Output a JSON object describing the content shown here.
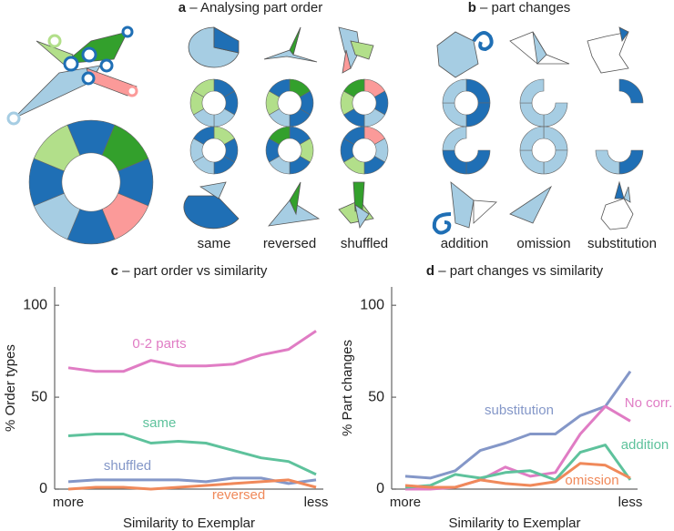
{
  "panels": {
    "a": {
      "label": "a",
      "title": "– Analysing part order",
      "columns": [
        "same",
        "reversed",
        "shuffled"
      ]
    },
    "b": {
      "label": "b",
      "title": "– part changes",
      "columns": [
        "addition",
        "omission",
        "substitution"
      ]
    }
  },
  "chart_data": [
    {
      "type": "line",
      "label": "c",
      "title": "– part order vs similarity",
      "x_label": "Similarity to Exemplar",
      "y_label": "% Order types",
      "categories": [
        "more",
        null,
        null,
        null,
        null,
        null,
        null,
        null,
        null,
        "less"
      ],
      "ylim": [
        0,
        110
      ],
      "yticks": [
        0,
        50,
        100
      ],
      "series": [
        {
          "name": "0-2 parts",
          "color": "#e07cc4",
          "values": [
            66,
            64,
            64,
            70,
            67,
            67,
            68,
            73,
            76,
            86
          ]
        },
        {
          "name": "same",
          "color": "#5ec29c",
          "values": [
            29,
            30,
            30,
            25,
            26,
            25,
            21,
            17,
            15,
            8
          ]
        },
        {
          "name": "shuffled",
          "color": "#8497c8",
          "values": [
            4,
            5,
            5,
            5,
            5,
            4,
            6,
            6,
            3,
            5
          ]
        },
        {
          "name": "reversed",
          "color": "#f0895a",
          "values": [
            0,
            1,
            1,
            0,
            1,
            2,
            3,
            4,
            5,
            1
          ]
        }
      ]
    },
    {
      "type": "line",
      "label": "d",
      "title": "– part changes vs similarity",
      "x_label": "Similarity to Exemplar",
      "y_label": "% Part changes",
      "categories": [
        "more",
        null,
        null,
        null,
        null,
        null,
        null,
        null,
        null,
        "less"
      ],
      "ylim": [
        0,
        110
      ],
      "yticks": [
        0,
        50,
        100
      ],
      "series": [
        {
          "name": "substitution",
          "color": "#8497c8",
          "values": [
            7,
            6,
            10,
            21,
            25,
            30,
            30,
            40,
            45,
            64
          ]
        },
        {
          "name": "No corr.",
          "color": "#e07cc4",
          "values": [
            0,
            0,
            1,
            5,
            12,
            7,
            9,
            30,
            45,
            37
          ]
        },
        {
          "name": "addition",
          "color": "#5ec29c",
          "values": [
            1,
            2,
            8,
            6,
            9,
            10,
            5,
            20,
            24,
            5
          ]
        },
        {
          "name": "omission",
          "color": "#f0895a",
          "values": [
            2,
            1,
            1,
            5,
            3,
            2,
            4,
            14,
            13,
            6
          ]
        }
      ]
    }
  ]
}
